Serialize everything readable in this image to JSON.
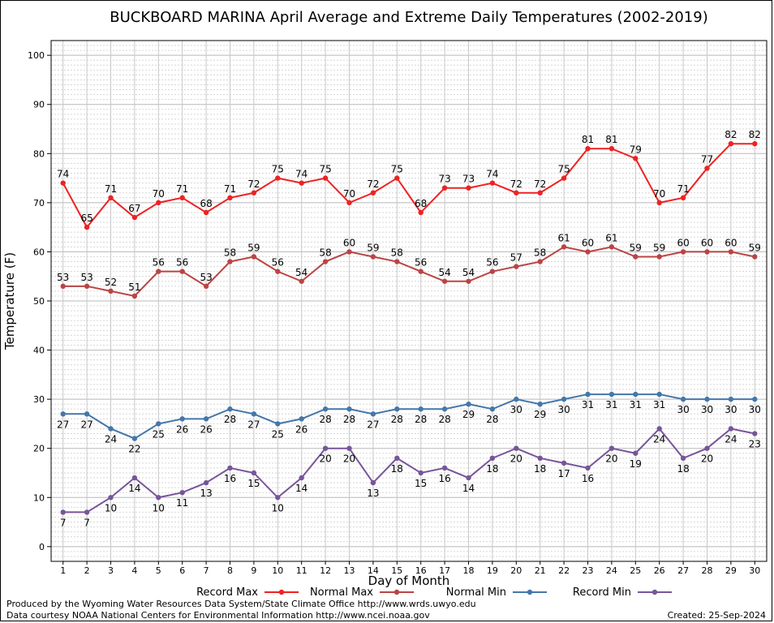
{
  "chart_data": {
    "type": "line",
    "title": "BUCKBOARD MARINA April Average and Extreme Daily Temperatures (2002-2019)",
    "xlabel": "Day of Month",
    "ylabel": "Temperature (F)",
    "ylim": [
      -3,
      103
    ],
    "yticks": [
      0,
      10,
      20,
      30,
      40,
      50,
      60,
      70,
      80,
      90,
      100
    ],
    "x": [
      1,
      2,
      3,
      4,
      5,
      6,
      7,
      8,
      9,
      10,
      11,
      12,
      13,
      14,
      15,
      16,
      17,
      18,
      19,
      20,
      21,
      22,
      23,
      24,
      25,
      26,
      27,
      28,
      29,
      30
    ],
    "grid": true,
    "legend_position": "bottom",
    "series": [
      {
        "name": "Record Max",
        "color": "#ee2222",
        "label_position": "above",
        "values": [
          74,
          65,
          71,
          67,
          70,
          71,
          68,
          71,
          72,
          75,
          74,
          75,
          70,
          72,
          75,
          68,
          73,
          73,
          74,
          72,
          72,
          75,
          81,
          81,
          79,
          70,
          71,
          77,
          82,
          82
        ]
      },
      {
        "name": "Normal Max",
        "color": "#bb4444",
        "label_position": "above",
        "values": [
          53,
          53,
          52,
          51,
          56,
          56,
          53,
          58,
          59,
          56,
          54,
          58,
          60,
          59,
          58,
          56,
          54,
          54,
          56,
          57,
          58,
          61,
          60,
          61,
          59,
          59,
          60,
          60,
          60,
          59
        ]
      },
      {
        "name": "Normal Min",
        "color": "#4477aa",
        "label_position": "below",
        "values": [
          27,
          27,
          24,
          22,
          25,
          26,
          26,
          28,
          27,
          25,
          26,
          28,
          28,
          27,
          28,
          28,
          28,
          29,
          28,
          30,
          29,
          30,
          31,
          31,
          31,
          31,
          30,
          30,
          30,
          30
        ]
      },
      {
        "name": "Record Min",
        "color": "#775599",
        "label_position": "below",
        "values": [
          7,
          7,
          10,
          14,
          10,
          11,
          13,
          16,
          15,
          10,
          14,
          20,
          20,
          13,
          18,
          15,
          16,
          14,
          18,
          20,
          18,
          17,
          16,
          20,
          19,
          24,
          18,
          20,
          24,
          23
        ]
      }
    ]
  },
  "footer": {
    "produced_by": "Produced by the Wyoming Water Resources Data System/State Climate Office http://www.wrds.uwyo.edu",
    "data_courtesy": "Data courtesy NOAA National Centers for Environmental Information http://www.ncei.noaa.gov",
    "created": "Created:  25-Sep-2024"
  }
}
